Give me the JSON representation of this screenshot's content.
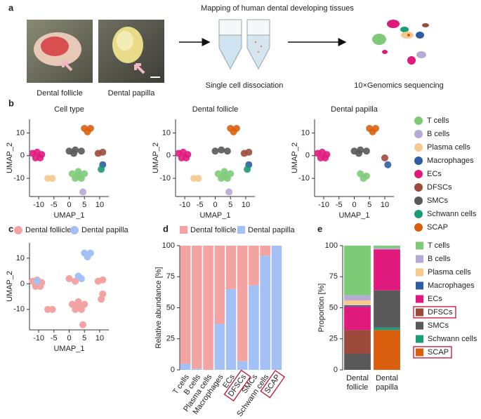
{
  "panel_labels": [
    "a",
    "b",
    "c",
    "d",
    "e"
  ],
  "panel_a": {
    "title": "Mapping of human dental developing tissues",
    "photos": [
      "Dental follicle",
      "Dental papilla"
    ],
    "steps": [
      "Single cell dissociation",
      "10×Genomics sequencing"
    ]
  },
  "chart_data": [
    {
      "type": "scatter-panels",
      "xlabel": "UMAP_1",
      "ylabel": "UMAP_2",
      "xlim": [
        -13,
        13
      ],
      "ylim": [
        -18,
        16
      ],
      "xticks": [
        -10,
        -5,
        0,
        5,
        10
      ],
      "yticks": [
        -10,
        0,
        10
      ],
      "series": [
        {
          "name": "T cells",
          "color": "#7dcb77"
        },
        {
          "name": "B cells",
          "color": "#b7a8d6"
        },
        {
          "name": "Plasma cells",
          "color": "#f6c98f"
        },
        {
          "name": "Macrophages",
          "color": "#2d5ea2"
        },
        {
          "name": "ECs",
          "color": "#e0197d"
        },
        {
          "name": "DFSCs",
          "color": "#9c4a3b"
        },
        {
          "name": "SMCs",
          "color": "#595959"
        },
        {
          "name": "Schwann cells",
          "color": "#1a9c76"
        },
        {
          "name": "SCAP",
          "color": "#d95f0e"
        }
      ],
      "panels": [
        {
          "title": "Cell type",
          "series": [
            {
              "x": [
                1,
                3,
                5,
                2,
                4,
                3
              ],
              "y": [
                -8,
                -7,
                -8,
                -10,
                -10,
                -9
              ]
            },
            {
              "x": [
                4.5
              ],
              "y": [
                -16
              ]
            },
            {
              "x": [
                -7,
                -5.5
              ],
              "y": [
                -10,
                -10
              ]
            },
            {
              "x": [
                11
              ],
              "y": [
                -4
              ]
            },
            {
              "x": [
                -12,
                -10.5,
                -9,
                -11,
                -9.5
              ],
              "y": [
                1,
                1.5,
                0.5,
                -1,
                -1
              ]
            },
            {
              "x": [
                9.5,
                11
              ],
              "y": [
                1,
                1.5
              ]
            },
            {
              "x": [
                0,
                2,
                4,
                1.5
              ],
              "y": [
                2,
                2.5,
                2,
                1
              ]
            },
            {
              "x": [
                10.5
              ],
              "y": [
                -6
              ]
            },
            {
              "x": [
                5,
                7,
                6
              ],
              "y": [
                12,
                12,
                10.5
              ]
            }
          ]
        },
        {
          "title": "Dental follicle",
          "series": [
            {
              "x": [
                1,
                3,
                5,
                2,
                4,
                3
              ],
              "y": [
                -8,
                -7,
                -8,
                -10,
                -10,
                -9
              ]
            },
            {
              "x": [
                4.5
              ],
              "y": [
                -16
              ]
            },
            {
              "x": [
                -7,
                -5.5
              ],
              "y": [
                -10,
                -10
              ]
            },
            {
              "x": [
                11
              ],
              "y": [
                -4
              ]
            },
            {
              "x": [
                -12,
                -10.5,
                -9,
                -11,
                -9.5
              ],
              "y": [
                1,
                1.5,
                0.5,
                -1,
                -1
              ]
            },
            {
              "x": [
                9.5,
                11
              ],
              "y": [
                1,
                1.5
              ]
            },
            {
              "x": [
                0,
                2,
                4
              ],
              "y": [
                2,
                2.5,
                2
              ]
            },
            {
              "x": [
                10.5
              ],
              "y": [
                -6
              ]
            },
            {
              "x": [
                5,
                7,
                6
              ],
              "y": [
                12,
                12,
                10.5
              ]
            }
          ]
        },
        {
          "title": "Dental papilla",
          "series": [
            {
              "x": [
                2,
                4,
                3
              ],
              "y": [
                -8,
                -9,
                -10
              ]
            },
            {
              "x": [],
              "y": []
            },
            {
              "x": [],
              "y": []
            },
            {
              "x": [
                11
              ],
              "y": [
                -4
              ]
            },
            {
              "x": [
                -12,
                -10.5,
                -9,
                -11,
                -9.5
              ],
              "y": [
                1,
                1.5,
                0.5,
                -1,
                -1
              ]
            },
            {
              "x": [
                10
              ],
              "y": [
                -1
              ]
            },
            {
              "x": [
                0,
                2,
                4,
                1.5
              ],
              "y": [
                2,
                2.5,
                2,
                1
              ]
            },
            {
              "x": [],
              "y": []
            },
            {
              "x": [
                5,
                7,
                6
              ],
              "y": [
                12,
                12,
                10.5
              ]
            }
          ]
        }
      ]
    },
    {
      "type": "scatter",
      "xlabel": "UMAP_1",
      "ylabel": "UMAP_2",
      "xlim": [
        -13,
        13
      ],
      "ylim": [
        -18,
        16
      ],
      "xticks": [
        -10,
        -5,
        0,
        5,
        10
      ],
      "yticks": [
        -10,
        0,
        10
      ],
      "series": [
        {
          "name": "Dental follicle",
          "color": "#f4a3a3",
          "x": [
            1,
            3,
            5,
            2,
            4,
            3,
            4.5,
            -7,
            -5.5,
            11,
            -12,
            -10.5,
            -9,
            -11,
            -9.5,
            9.5,
            11,
            0,
            2,
            10.5
          ],
          "y": [
            -8,
            -7,
            -8,
            -10,
            -10,
            -9,
            -16,
            -10,
            -10,
            -4,
            1,
            1.5,
            0.5,
            -1,
            -1,
            1,
            1.5,
            2,
            1,
            -6
          ]
        },
        {
          "name": "Dental papilla",
          "color": "#a3c1f5",
          "x": [
            5,
            7,
            6,
            3,
            4,
            -10.5
          ],
          "y": [
            12,
            12,
            10.5,
            3,
            2,
            1
          ]
        }
      ]
    },
    {
      "type": "stacked-bar",
      "ylabel": "Relative abundance [%]",
      "categories": [
        "T cells",
        "B cells",
        "Plasma cells",
        "Macrophages",
        "ECs",
        "DFSCs",
        "SMCs",
        "Schwann cells",
        "SCAP"
      ],
      "ylim": [
        0,
        100
      ],
      "yticks": [
        0,
        25,
        50,
        75,
        100
      ],
      "stack": "reverse",
      "highlight": [
        5,
        8
      ],
      "series": [
        {
          "name": "Dental follicle",
          "color": "#f4a3a3",
          "values": [
            95,
            99,
            100,
            63,
            35,
            93,
            32,
            8,
            0
          ]
        },
        {
          "name": "Dental papilla",
          "color": "#a3c1f5",
          "values": [
            5,
            1,
            0,
            37,
            65,
            7,
            68,
            92,
            100
          ]
        }
      ]
    },
    {
      "type": "stacked-bar",
      "ylabel": "Proportion [%]",
      "categories": [
        "Dental follicle",
        "Dental papilla"
      ],
      "ylim": [
        0,
        100
      ],
      "yticks": [
        0,
        25,
        50,
        75,
        100
      ],
      "stack": "reverse",
      "highlight": [
        5,
        8
      ],
      "series": [
        {
          "name": "T cells",
          "color": "#7dcb77",
          "values": [
            40,
            2
          ]
        },
        {
          "name": "B cells",
          "color": "#b7a8d6",
          "values": [
            4,
            1
          ]
        },
        {
          "name": "Plasma cells",
          "color": "#f6c98f",
          "values": [
            4,
            0
          ]
        },
        {
          "name": "Macrophages",
          "color": "#2d5ea2",
          "values": [
            1,
            0
          ]
        },
        {
          "name": "ECs",
          "color": "#e0197d",
          "values": [
            19,
            33
          ]
        },
        {
          "name": "DFSCs",
          "color": "#9c4a3b",
          "values": [
            19,
            0
          ]
        },
        {
          "name": "SMCs",
          "color": "#595959",
          "values": [
            13,
            30
          ]
        },
        {
          "name": "Schwann cells",
          "color": "#1a9c76",
          "values": [
            0,
            2
          ]
        },
        {
          "name": "SCAP",
          "color": "#d95f0e",
          "values": [
            0,
            32
          ]
        }
      ]
    }
  ]
}
